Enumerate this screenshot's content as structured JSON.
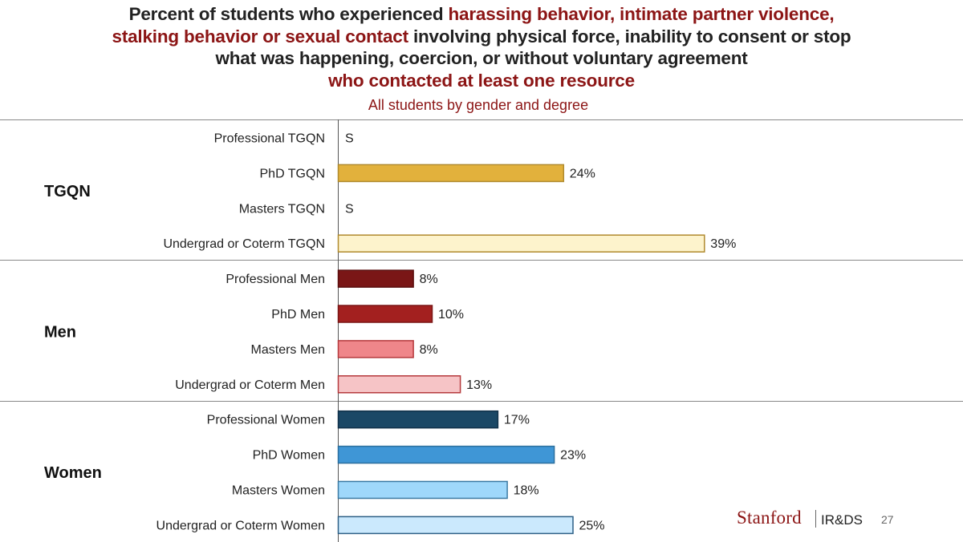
{
  "header": {
    "title_lines": [
      [
        {
          "text": "Percent of students who experienced ",
          "hl": false
        },
        {
          "text": "harassing behavior, intimate partner violence,",
          "hl": true
        }
      ],
      [
        {
          "text": "stalking behavior or sexual contact",
          "hl": true
        },
        {
          "text": " involving physical force, inability to consent or stop",
          "hl": false
        }
      ],
      [
        {
          "text": "what was happening, coercion, or without voluntary agreement",
          "hl": false
        }
      ],
      [
        {
          "text": "who contacted at least one resource",
          "hl": true
        }
      ]
    ],
    "subtitle": "All students by gender and degree"
  },
  "chart_data": {
    "type": "bar",
    "orientation": "horizontal",
    "title": "Percent of students who experienced harassing behavior, intimate partner violence, stalking behavior or sexual contact involving physical force, inability to consent or stop what was happening, coercion, or without voluntary agreement who contacted at least one resource",
    "subtitle": "All students by gender and degree",
    "xlim": [
      0,
      100
    ],
    "groups": [
      {
        "name": "TGQN",
        "bars": [
          {
            "category": "Professional TGQN",
            "value": null,
            "label": "S",
            "fill": "#ffffff",
            "stroke": "#ffffff"
          },
          {
            "category": "PhD TGQN",
            "value": 24,
            "label": "24%",
            "fill": "#e2b13c",
            "stroke": "#b08a2e"
          },
          {
            "category": "Masters TGQN",
            "value": null,
            "label": "S",
            "fill": "#ffffff",
            "stroke": "#ffffff"
          },
          {
            "category": "Undergrad or Coterm TGQN",
            "value": 39,
            "label": "39%",
            "fill": "#fdf3cc",
            "stroke": "#b08a2e"
          }
        ]
      },
      {
        "name": "Men",
        "bars": [
          {
            "category": "Professional Men",
            "value": 8,
            "label": "8%",
            "fill": "#7a1616",
            "stroke": "#5a0f0f"
          },
          {
            "category": "PhD Men",
            "value": 10,
            "label": "10%",
            "fill": "#a3201f",
            "stroke": "#7a1616"
          },
          {
            "category": "Masters Men",
            "value": 8,
            "label": "8%",
            "fill": "#ef868a",
            "stroke": "#b5393c"
          },
          {
            "category": "Undergrad or Coterm Men",
            "value": 13,
            "label": "13%",
            "fill": "#f6c4c6",
            "stroke": "#b5393c"
          }
        ]
      },
      {
        "name": "Women",
        "bars": [
          {
            "category": "Professional Women",
            "value": 17,
            "label": "17%",
            "fill": "#1b4866",
            "stroke": "#12324a"
          },
          {
            "category": "PhD Women",
            "value": 23,
            "label": "23%",
            "fill": "#3f96d6",
            "stroke": "#2b6f9e"
          },
          {
            "category": "Masters Women",
            "value": 18,
            "label": "18%",
            "fill": "#9fd8fb",
            "stroke": "#3b7aa3"
          },
          {
            "category": "Undergrad or Coterm Women",
            "value": 25,
            "label": "25%",
            "fill": "#cbe9fd",
            "stroke": "#2c5f85"
          }
        ]
      }
    ]
  },
  "footer": {
    "logo_text": "Stanford",
    "unit_text": "IR&DS",
    "page_number": "27"
  }
}
